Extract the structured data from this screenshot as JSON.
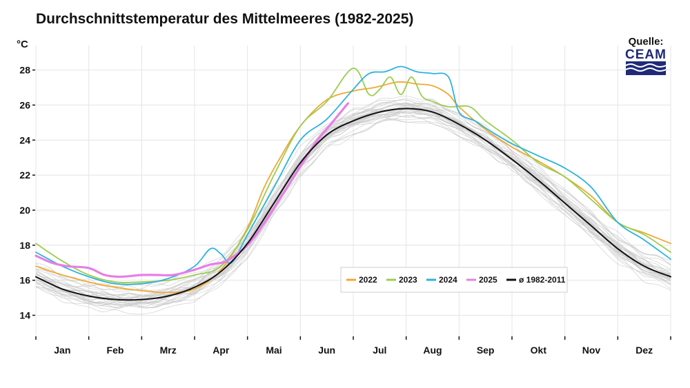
{
  "title": "Durchschnittstemperatur des Mittelmeeres (1982-2025)",
  "unit": "°C",
  "source": {
    "label": "Quelle:",
    "logo_text": "CEAM"
  },
  "colors": {
    "2022": "#f0a830",
    "2023": "#9ccc4e",
    "2024": "#2bb3dc",
    "2025": "#e77ee6",
    "avg": "#111111",
    "background_years": "#c8c8c8",
    "grid": "#e4e4e4",
    "brand": "#1f2a78"
  },
  "chart_data": {
    "type": "line",
    "title": "Durchschnittstemperatur des Mittelmeeres (1982-2025)",
    "xlabel": "",
    "ylabel": "°C",
    "ylim": [
      12.8,
      29.4
    ],
    "yticks": [
      14,
      16,
      18,
      20,
      22,
      24,
      26,
      28
    ],
    "xlim": [
      0,
      12
    ],
    "months": [
      "Jan",
      "Feb",
      "Mrz",
      "Apr",
      "Mai",
      "Jun",
      "Jul",
      "Aug",
      "Sep",
      "Okt",
      "Nov",
      "Dez"
    ],
    "legend_position": "bottom-right",
    "series": [
      {
        "name": "2022",
        "color": "#f0a830",
        "width": 1.8,
        "x": [
          0,
          0.5,
          1,
          1.5,
          2,
          2.5,
          3,
          3.5,
          4,
          4.3,
          4.6,
          5,
          5.5,
          6,
          6.4,
          6.8,
          7,
          7.2,
          7.5,
          7.8,
          8,
          8.5,
          9,
          9.5,
          10,
          10.5,
          11,
          11.5,
          12
        ],
        "y": [
          16.8,
          16.3,
          15.9,
          15.6,
          15.4,
          15.3,
          15.5,
          16.6,
          19.0,
          21.2,
          22.9,
          24.8,
          26.3,
          26.8,
          27.0,
          27.3,
          27.3,
          27.2,
          27.1,
          26.6,
          25.9,
          24.6,
          23.6,
          22.8,
          21.9,
          20.8,
          19.3,
          18.7,
          18.1
        ]
      },
      {
        "name": "2023",
        "color": "#9ccc4e",
        "width": 1.8,
        "x": [
          0,
          0.5,
          1,
          1.5,
          2,
          2.5,
          3,
          3.5,
          4,
          4.5,
          5,
          5.5,
          6,
          6.3,
          6.5,
          6.7,
          6.9,
          7.1,
          7.3,
          7.5,
          7.8,
          8.2,
          8.5,
          9,
          9.5,
          10,
          10.5,
          11,
          11.5,
          12
        ],
        "y": [
          18.1,
          17.1,
          16.3,
          15.9,
          15.9,
          16.0,
          16.3,
          16.8,
          18.9,
          22.0,
          24.8,
          26.2,
          28.1,
          26.6,
          26.9,
          27.6,
          26.6,
          27.6,
          26.5,
          26.2,
          25.9,
          25.9,
          25.1,
          24.0,
          22.7,
          21.9,
          20.6,
          19.3,
          18.6,
          17.6
        ]
      },
      {
        "name": "2024",
        "color": "#2bb3dc",
        "width": 1.8,
        "x": [
          0,
          0.5,
          1,
          1.5,
          2,
          2.5,
          3,
          3.3,
          3.5,
          3.7,
          4,
          4.5,
          5,
          5.5,
          6,
          6.3,
          6.6,
          6.9,
          7.2,
          7.5,
          7.8,
          8,
          8.3,
          8.6,
          9,
          9.5,
          10,
          10.5,
          11,
          11.5,
          12
        ],
        "y": [
          17.6,
          16.8,
          16.2,
          15.8,
          15.8,
          16.1,
          16.8,
          17.8,
          17.5,
          17.0,
          18.6,
          21.3,
          24.0,
          25.2,
          26.9,
          27.8,
          27.9,
          28.2,
          27.9,
          27.8,
          27.6,
          25.6,
          25.1,
          24.5,
          23.8,
          23.1,
          22.4,
          21.3,
          19.3,
          18.3,
          17.2
        ]
      },
      {
        "name": "2025",
        "color": "#e77ee6",
        "width": 3.2,
        "x": [
          0,
          0.3,
          0.6,
          1,
          1.3,
          1.6,
          2,
          2.3,
          2.6,
          3,
          3.3,
          3.6,
          4,
          4.3,
          4.6,
          5,
          5.3,
          5.6,
          5.9
        ],
        "y": [
          17.4,
          17.0,
          16.8,
          16.7,
          16.3,
          16.2,
          16.3,
          16.3,
          16.3,
          16.6,
          16.9,
          17.1,
          18.0,
          19.2,
          20.6,
          22.5,
          23.9,
          25.0,
          26.1
        ]
      },
      {
        "name": "ø 1982-2011",
        "color": "#111111",
        "width": 2.0,
        "x": [
          0,
          0.5,
          1,
          1.5,
          2,
          2.5,
          3,
          3.5,
          4,
          4.5,
          5,
          5.5,
          6,
          6.5,
          7,
          7.5,
          8,
          8.5,
          9,
          9.5,
          10,
          10.5,
          11,
          11.5,
          12
        ],
        "y": [
          16.2,
          15.5,
          15.1,
          14.9,
          14.9,
          15.1,
          15.6,
          16.5,
          18.1,
          20.4,
          22.7,
          24.3,
          25.1,
          25.6,
          25.8,
          25.6,
          24.9,
          24.0,
          22.9,
          21.7,
          20.4,
          19.1,
          17.8,
          16.8,
          16.2
        ]
      }
    ]
  },
  "legend": [
    {
      "label": "2022",
      "color": "#f0a830"
    },
    {
      "label": "2023",
      "color": "#9ccc4e"
    },
    {
      "label": "2024",
      "color": "#2bb3dc"
    },
    {
      "label": "2025",
      "color": "#e77ee6"
    },
    {
      "label": "ø 1982-2011",
      "color": "#111111"
    }
  ]
}
